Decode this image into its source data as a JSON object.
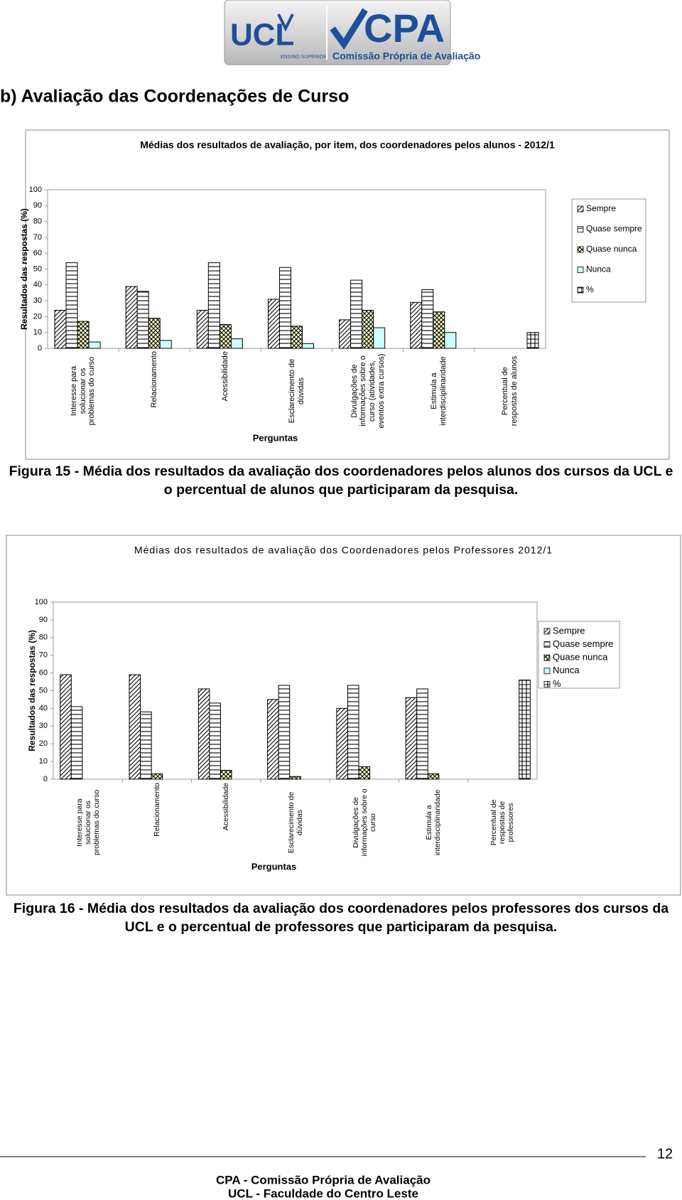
{
  "header": {
    "logo_ucl": "UCL",
    "logo_ucl_tagline": "ENSINO SUPERIOR",
    "logo_cpa": "CPA",
    "logo_cpa_tagline": "Comissão Própria de Avaliação"
  },
  "section_title": "b) Avaliação das Coordenações de Curso",
  "chart_data": [
    {
      "type": "bar",
      "title": "Médias dos resultados de avaliação, por item, dos coordenadores pelos alunos - 2012/1",
      "x_label": "Perguntas",
      "y_label": "Resultados das respostas (%)",
      "categories": [
        "Interesse para solucionar os problemas do curso",
        "Relacionamento",
        "Acessibilidade",
        "Esclarecimento de dúvidas",
        "Divulgações de informações sobre o curso (atividades, eventos extra cursos)",
        "Estimula a interdisciplinaridade",
        "Percentual de respostas de alunos"
      ],
      "series": [
        {
          "name": "Sempre",
          "color": "#ffffff",
          "values": [
            24,
            39,
            24,
            31,
            18,
            29,
            null
          ]
        },
        {
          "name": "Quase sempre",
          "color": "#ffffff",
          "values": [
            54,
            36,
            54,
            51,
            43,
            37,
            null
          ]
        },
        {
          "name": "Quase nunca",
          "color": "#ffffcc",
          "values": [
            17,
            19,
            15,
            14,
            24,
            23,
            null
          ]
        },
        {
          "name": "Nunca",
          "color": "#ccffff",
          "values": [
            4,
            5,
            6,
            3,
            13,
            10,
            null
          ]
        },
        {
          "name": "%",
          "color": "#ffffff",
          "values": [
            null,
            null,
            null,
            null,
            null,
            null,
            10
          ]
        }
      ],
      "ylim": [
        0,
        100
      ],
      "yticks": [
        0,
        10,
        20,
        30,
        40,
        50,
        60,
        70,
        80,
        90,
        100
      ],
      "grid": false,
      "legend": "right"
    },
    {
      "type": "bar",
      "title": "Médias dos resultados de avaliação dos Coordenadores pelos Professores 2012/1",
      "x_label": "Perguntas",
      "y_label": "Resultados das respostas (%)",
      "categories": [
        "Interesse para solucionar os problemas do curso",
        "Relacionamento",
        "Acessibilidade",
        "Esclarecimento de dúvidas",
        "Divulgações de informações sobre o curso",
        "Estimula a interdisciplinaridade",
        "Percentual de respostas de professores"
      ],
      "series": [
        {
          "name": "Sempre",
          "color": "#ffffff",
          "values": [
            59,
            59,
            51,
            45,
            40,
            46,
            null
          ]
        },
        {
          "name": "Quase sempre",
          "color": "#ffffff",
          "values": [
            41,
            38,
            43,
            53,
            53,
            51,
            null
          ]
        },
        {
          "name": "Quase nunca",
          "color": "#ffffcc",
          "values": [
            null,
            3,
            5,
            1.5,
            7,
            3,
            null
          ]
        },
        {
          "name": "Nunca",
          "color": "#ccffff",
          "values": [
            null,
            null,
            null,
            null,
            null,
            null,
            null
          ]
        },
        {
          "name": "%",
          "color": "#ffffff",
          "values": [
            null,
            null,
            null,
            null,
            null,
            null,
            56
          ]
        }
      ],
      "ylim": [
        0,
        100
      ],
      "yticks": [
        0,
        10,
        20,
        30,
        40,
        50,
        60,
        70,
        80,
        90,
        100
      ],
      "grid": false,
      "legend": "right"
    }
  ],
  "captions": [
    "Figura 15 - Média dos resultados da avaliação dos coordenadores pelos alunos dos cursos da UCL e o percentual de alunos que participaram da pesquisa.",
    "Figura 16 - Média dos resultados da avaliação dos coordenadores pelos professores dos cursos da UCL e o percentual de professores que participaram da pesquisa."
  ],
  "footer": {
    "page_number": "12",
    "lines": [
      "CPA - Comissão Própria de Avaliação",
      "UCL - Faculdade do Centro Leste"
    ]
  }
}
